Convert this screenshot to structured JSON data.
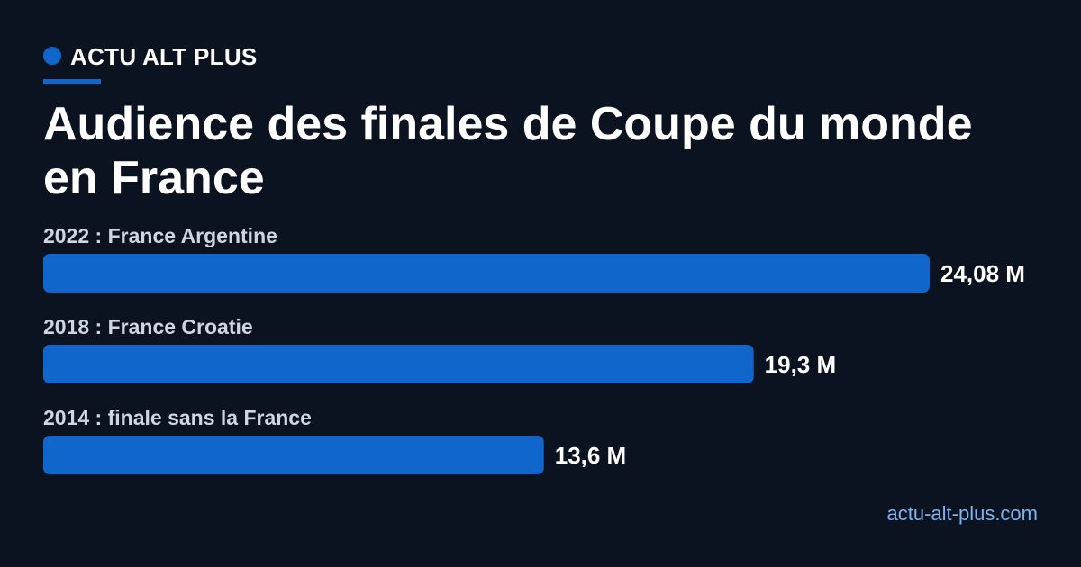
{
  "brand": {
    "name": "ACTU ALT PLUS",
    "accent_color": "#1166cc"
  },
  "title": "Audience des finales de Coupe du monde en France",
  "footer": {
    "site": "actu-alt-plus.com"
  },
  "chart_data": {
    "type": "bar",
    "orientation": "horizontal",
    "categories": [
      "2022 : France Argentine",
      "2018 : France Croatie",
      "2014 : finale sans la France"
    ],
    "values": [
      24.08,
      19.3,
      13.6
    ],
    "value_labels": [
      "24,08 M",
      "19,3 M",
      "13,6 M"
    ],
    "bar_color": "#1166cc",
    "label_color": "#cfd6e2",
    "value_label_color": "#ffffff",
    "grid": false
  }
}
